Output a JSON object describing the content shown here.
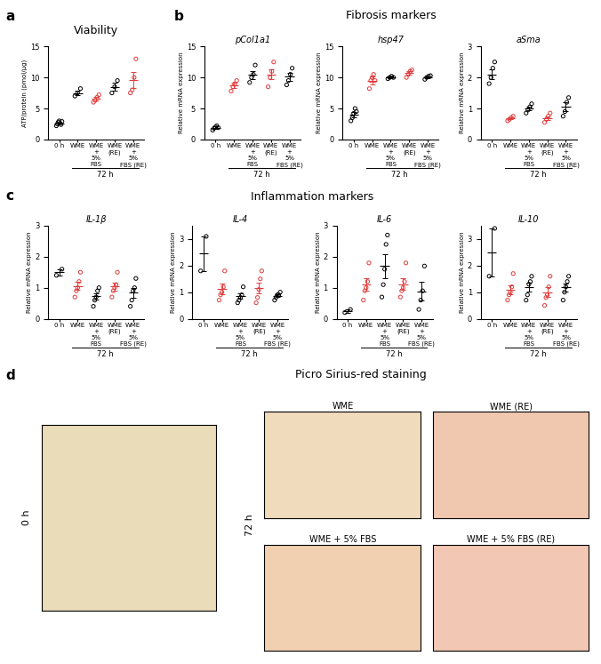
{
  "panel_labels": [
    "a",
    "b",
    "c",
    "d"
  ],
  "section_titles": [
    "Fibrosis markers",
    "Inflammation markers",
    "Picro Sirius-red staining"
  ],
  "chart_data": [
    {
      "type": "scatter",
      "title": "Viability",
      "y_label": "ATP/protein (pmol/µg)",
      "categories": [
        "0 h",
        "WME",
        "WME\n+\n5%\nFBS",
        "WME\n(RE)",
        "WME\n+\n5%\nFBS (RE)"
      ],
      "colors": [
        "#000000",
        "#000000",
        "#e03c3c",
        "#000000",
        "#e03c3c"
      ],
      "values": [
        [
          2.2,
          2.5,
          2.8,
          3.0,
          2.6,
          2.4,
          2.9
        ],
        [
          7.0,
          7.5,
          8.2
        ],
        [
          6.0,
          6.3,
          6.8,
          7.2
        ],
        [
          7.5,
          8.5,
          9.5
        ],
        [
          7.5,
          8.0,
          10.0,
          13.0
        ]
      ],
      "mean": [
        2.6,
        7.5,
        6.6,
        8.5,
        9.6
      ],
      "sem": [
        0.1,
        0.4,
        0.3,
        0.6,
        1.3
      ],
      "ylim": [
        0,
        15
      ],
      "yticks": [
        0,
        5,
        10,
        15
      ],
      "group_label": "72 h"
    },
    {
      "type": "scatter",
      "title": "pCol1a1",
      "y_label": "Relative mRNA expression",
      "categories": [
        "0 h",
        "WME",
        "WME\n+\n5%\nFBS",
        "WME\n(RE)",
        "WME\n+\n5%\nFBS (RE)"
      ],
      "colors": [
        "#000000",
        "#e03c3c",
        "#000000",
        "#e03c3c",
        "#000000"
      ],
      "values": [
        [
          1.5,
          1.8,
          2.0,
          2.2,
          1.9
        ],
        [
          7.8,
          8.5,
          9.0,
          9.5
        ],
        [
          9.2,
          10.0,
          10.5,
          12.0
        ],
        [
          8.5,
          10.0,
          11.0,
          12.5
        ],
        [
          8.8,
          9.5,
          10.5,
          11.5
        ]
      ],
      "mean": [
        1.9,
        8.7,
        10.4,
        10.5,
        10.1
      ],
      "sem": [
        0.2,
        0.4,
        0.6,
        0.8,
        0.6
      ],
      "ylim": [
        0,
        15
      ],
      "yticks": [
        0,
        5,
        10,
        15
      ],
      "group_label": "72 h"
    },
    {
      "type": "scatter",
      "title": "hsp47",
      "y_label": "Relative mRNA expression",
      "categories": [
        "0 h",
        "WME",
        "WME\n+\n5%\nFBS",
        "WME\n(RE)",
        "WME\n+\n5%\nFBS (RE)"
      ],
      "colors": [
        "#000000",
        "#e03c3c",
        "#000000",
        "#e03c3c",
        "#000000"
      ],
      "values": [
        [
          3.0,
          3.5,
          4.2,
          5.0,
          4.5
        ],
        [
          8.2,
          9.5,
          10.0,
          10.5,
          9.5
        ],
        [
          9.8,
          10.0,
          10.2,
          10.0
        ],
        [
          10.0,
          10.5,
          11.0,
          11.2
        ],
        [
          9.7,
          10.0,
          10.2,
          10.3
        ]
      ],
      "mean": [
        4.0,
        9.5,
        10.0,
        10.7,
        10.0
      ],
      "sem": [
        0.4,
        0.6,
        0.1,
        0.3,
        0.15
      ],
      "ylim": [
        0,
        15
      ],
      "yticks": [
        0,
        5,
        10,
        15
      ],
      "group_label": "72 h"
    },
    {
      "type": "scatter",
      "title": "aSma",
      "y_label": "Relative mRNA expression",
      "categories": [
        "0 h",
        "WME",
        "WME\n+\n5%\nFBS",
        "WME\n(RE)",
        "WME\n+\n5%\nFBS (RE)"
      ],
      "colors": [
        "#000000",
        "#e03c3c",
        "#000000",
        "#e03c3c",
        "#000000"
      ],
      "values": [
        [
          1.8,
          2.0,
          2.3,
          2.5
        ],
        [
          0.6,
          0.65,
          0.7,
          0.75
        ],
        [
          0.85,
          0.95,
          1.05,
          1.15
        ],
        [
          0.55,
          0.65,
          0.75,
          0.85
        ],
        [
          0.75,
          0.9,
          1.2,
          1.35
        ]
      ],
      "mean": [
        2.1,
        0.68,
        1.0,
        0.68,
        1.05
      ],
      "sem": [
        0.15,
        0.03,
        0.07,
        0.06,
        0.15
      ],
      "ylim": [
        0,
        3
      ],
      "yticks": [
        0,
        1,
        2,
        3
      ],
      "group_label": "72 h"
    },
    {
      "type": "scatter",
      "title": "IL-1β",
      "y_label": "Relative mRNA expression",
      "categories": [
        "0 h",
        "WME",
        "WME\n+\n5%\nFBS",
        "WME\n(RE)",
        "WME\n+\n5%\nFBS (RE)"
      ],
      "colors": [
        "#000000",
        "#e03c3c",
        "#000000",
        "#e03c3c",
        "#000000"
      ],
      "values": [
        [
          1.4,
          1.6
        ],
        [
          0.7,
          0.9,
          1.0,
          1.2,
          1.5
        ],
        [
          0.4,
          0.6,
          0.7,
          0.9,
          1.0
        ],
        [
          0.7,
          0.9,
          1.0,
          1.1,
          1.5
        ],
        [
          0.4,
          0.6,
          0.9,
          1.0,
          1.3
        ]
      ],
      "mean": [
        1.5,
        1.06,
        0.72,
        1.04,
        0.84
      ],
      "sem": [
        0.1,
        0.14,
        0.1,
        0.13,
        0.16
      ],
      "ylim": [
        0,
        3
      ],
      "yticks": [
        0,
        1,
        2,
        3
      ],
      "group_label": "72 h"
    },
    {
      "type": "scatter",
      "title": "IL-4",
      "y_label": "Relative mRNA expression",
      "categories": [
        "0 h",
        "WME",
        "WME\n+\n5%\nFBS",
        "WME\n(RE)",
        "WME\n+\n5%\nFBS (RE)"
      ],
      "colors": [
        "#000000",
        "#e03c3c",
        "#000000",
        "#e03c3c",
        "#000000"
      ],
      "values": [
        [
          1.8,
          3.1
        ],
        [
          0.7,
          0.9,
          1.0,
          1.2,
          1.8
        ],
        [
          0.6,
          0.7,
          0.8,
          0.9,
          1.2
        ],
        [
          0.6,
          0.8,
          1.1,
          1.5,
          1.8
        ],
        [
          0.7,
          0.8,
          0.9,
          0.9,
          1.0
        ]
      ],
      "mean": [
        2.45,
        1.12,
        0.84,
        1.16,
        0.86
      ],
      "sem": [
        0.65,
        0.19,
        0.1,
        0.21,
        0.05
      ],
      "ylim": [
        0,
        3.5
      ],
      "yticks": [
        0,
        1,
        2,
        3
      ],
      "group_label": "72 h"
    },
    {
      "type": "scatter",
      "title": "IL-6",
      "y_label": "Relative mRNA expression",
      "categories": [
        "0 h",
        "WME",
        "WME\n+\n5%\nFBS",
        "WME\n(RE)",
        "WME\n+\n5%\nFBS (RE)"
      ],
      "colors": [
        "#000000",
        "#e03c3c",
        "#000000",
        "#e03c3c",
        "#000000"
      ],
      "values": [
        [
          0.2,
          0.3
        ],
        [
          0.6,
          0.9,
          1.0,
          1.2,
          1.8
        ],
        [
          0.7,
          1.1,
          1.6,
          2.4,
          2.7
        ],
        [
          0.7,
          0.9,
          1.0,
          1.2,
          1.8
        ],
        [
          0.3,
          0.6,
          0.9,
          1.7
        ]
      ],
      "mean": [
        0.25,
        1.1,
        1.7,
        1.12,
        0.88
      ],
      "sem": [
        0.05,
        0.2,
        0.38,
        0.19,
        0.3
      ],
      "ylim": [
        0,
        3
      ],
      "yticks": [
        0,
        1,
        2,
        3
      ],
      "group_label": "72 h"
    },
    {
      "type": "scatter",
      "title": "IL-10",
      "y_label": "Relative mRNA expression",
      "categories": [
        "0 h",
        "WME",
        "WME\n+\n5%\nFBS",
        "WME\n(RE)",
        "WME\n+\n5%\nFBS (RE)"
      ],
      "colors": [
        "#000000",
        "#e03c3c",
        "#000000",
        "#e03c3c",
        "#000000"
      ],
      "values": [
        [
          1.6,
          3.4
        ],
        [
          0.7,
          0.9,
          1.0,
          1.2,
          1.7
        ],
        [
          0.7,
          0.9,
          1.3,
          1.4,
          1.6
        ],
        [
          0.5,
          0.8,
          0.9,
          1.2,
          1.6
        ],
        [
          0.7,
          1.0,
          1.2,
          1.4,
          1.6
        ]
      ],
      "mean": [
        2.5,
        1.1,
        1.18,
        1.0,
        1.18
      ],
      "sem": [
        0.9,
        0.17,
        0.17,
        0.19,
        0.16
      ],
      "ylim": [
        0,
        3.5
      ],
      "yticks": [
        0,
        1,
        2,
        3
      ],
      "group_label": "72 h"
    }
  ],
  "images": {
    "left_label": "0 h",
    "right_label": "72 h",
    "titles": [
      "WME",
      "WME (RE)",
      "WME + 5% FBS",
      "WME + 5% FBS (RE)"
    ]
  }
}
